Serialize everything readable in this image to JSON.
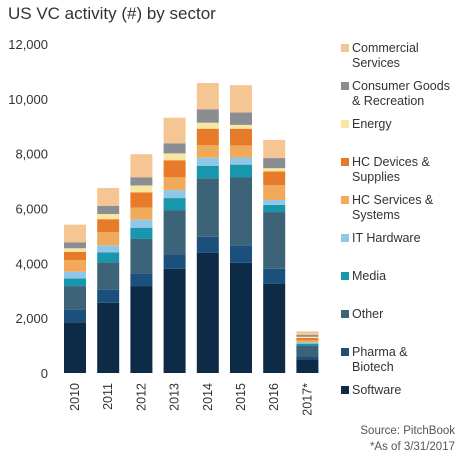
{
  "chart_data": {
    "type": "bar",
    "stacked": true,
    "title": "US VC activity (#) by sector",
    "xlabel": "",
    "ylabel": "",
    "categories": [
      "2010",
      "2011",
      "2012",
      "2013",
      "2014",
      "2015",
      "2016",
      "2017*"
    ],
    "ylim": [
      0,
      12000
    ],
    "yticks": [
      "0",
      "2,000",
      "4,000",
      "6,000",
      "8,000",
      "10,000",
      "12,000"
    ],
    "grid": false,
    "legend_position": "right",
    "series": [
      {
        "name": "Software",
        "color": "#0d2a47",
        "values": [
          1850,
          2560,
          3170,
          3800,
          4380,
          4020,
          3260,
          490
        ]
      },
      {
        "name": "Pharma & Biotech",
        "color": "#1b4f7c",
        "values": [
          450,
          480,
          470,
          520,
          590,
          640,
          540,
          110
        ]
      },
      {
        "name": "Other",
        "color": "#3d6379",
        "values": [
          870,
          1000,
          1250,
          1620,
          2130,
          2470,
          2070,
          400
        ]
      },
      {
        "name": "Media",
        "color": "#1896ae",
        "values": [
          280,
          360,
          410,
          440,
          460,
          470,
          260,
          70
        ]
      },
      {
        "name": "IT Hardware",
        "color": "#8fc8e6",
        "values": [
          240,
          260,
          290,
          290,
          290,
          260,
          180,
          50
        ]
      },
      {
        "name": "HC Services & Systems",
        "color": "#f0aa5a",
        "values": [
          430,
          480,
          440,
          470,
          460,
          440,
          540,
          70
        ]
      },
      {
        "name": "HC Devices & Supplies",
        "color": "#e87b2a",
        "values": [
          300,
          470,
          560,
          620,
          600,
          610,
          500,
          90
        ]
      },
      {
        "name": "Energy",
        "color": "#f7e7a2",
        "values": [
          130,
          190,
          250,
          250,
          220,
          140,
          120,
          40
        ]
      },
      {
        "name": "Consumer Goods & Recreation",
        "color": "#8a8e93",
        "values": [
          210,
          300,
          300,
          370,
          490,
          450,
          370,
          70
        ]
      },
      {
        "name": "Commercial Services",
        "color": "#f6c594",
        "values": [
          650,
          650,
          840,
          930,
          960,
          1000,
          660,
          130
        ]
      }
    ],
    "legend_lines": {
      "Commercial Services": [
        "Commercial",
        "Services"
      ],
      "Consumer Goods & Recreation": [
        "Consumer Goods",
        "& Recreation"
      ],
      "Energy": [
        "Energy"
      ],
      "HC Devices & Supplies": [
        "HC Devices &",
        "Supplies"
      ],
      "HC Services & Systems": [
        "HC Services &",
        "Systems"
      ],
      "IT Hardware": [
        "IT Hardware"
      ],
      "Media": [
        "Media"
      ],
      "Other": [
        "Other"
      ],
      "Pharma & Biotech": [
        "Pharma &",
        "Biotech"
      ],
      "Software": [
        "Software"
      ]
    }
  },
  "source": "Source: PitchBook",
  "footnote": "*As of 3/31/2017"
}
